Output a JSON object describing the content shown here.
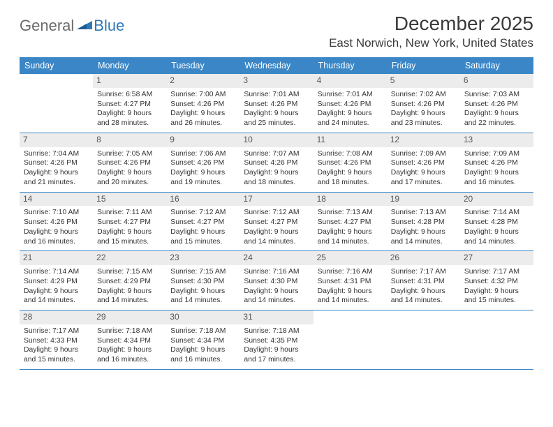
{
  "logo": {
    "text1": "General",
    "text2": "Blue"
  },
  "title": "December 2025",
  "location": "East Norwich, New York, United States",
  "colors": {
    "header_bar": "#3a86c6",
    "daynum_bg": "#ececec",
    "rule": "#3a86c6",
    "text": "#333333",
    "logo_gray": "#6b6b6b",
    "logo_blue": "#2f78b7"
  },
  "weekdays": [
    "Sunday",
    "Monday",
    "Tuesday",
    "Wednesday",
    "Thursday",
    "Friday",
    "Saturday"
  ],
  "weeks": [
    [
      {
        "n": "",
        "t": "",
        "empty": true
      },
      {
        "n": "1",
        "t": "Sunrise: 6:58 AM\nSunset: 4:27 PM\nDaylight: 9 hours and 28 minutes."
      },
      {
        "n": "2",
        "t": "Sunrise: 7:00 AM\nSunset: 4:26 PM\nDaylight: 9 hours and 26 minutes."
      },
      {
        "n": "3",
        "t": "Sunrise: 7:01 AM\nSunset: 4:26 PM\nDaylight: 9 hours and 25 minutes."
      },
      {
        "n": "4",
        "t": "Sunrise: 7:01 AM\nSunset: 4:26 PM\nDaylight: 9 hours and 24 minutes."
      },
      {
        "n": "5",
        "t": "Sunrise: 7:02 AM\nSunset: 4:26 PM\nDaylight: 9 hours and 23 minutes."
      },
      {
        "n": "6",
        "t": "Sunrise: 7:03 AM\nSunset: 4:26 PM\nDaylight: 9 hours and 22 minutes."
      }
    ],
    [
      {
        "n": "7",
        "t": "Sunrise: 7:04 AM\nSunset: 4:26 PM\nDaylight: 9 hours and 21 minutes."
      },
      {
        "n": "8",
        "t": "Sunrise: 7:05 AM\nSunset: 4:26 PM\nDaylight: 9 hours and 20 minutes."
      },
      {
        "n": "9",
        "t": "Sunrise: 7:06 AM\nSunset: 4:26 PM\nDaylight: 9 hours and 19 minutes."
      },
      {
        "n": "10",
        "t": "Sunrise: 7:07 AM\nSunset: 4:26 PM\nDaylight: 9 hours and 18 minutes."
      },
      {
        "n": "11",
        "t": "Sunrise: 7:08 AM\nSunset: 4:26 PM\nDaylight: 9 hours and 18 minutes."
      },
      {
        "n": "12",
        "t": "Sunrise: 7:09 AM\nSunset: 4:26 PM\nDaylight: 9 hours and 17 minutes."
      },
      {
        "n": "13",
        "t": "Sunrise: 7:09 AM\nSunset: 4:26 PM\nDaylight: 9 hours and 16 minutes."
      }
    ],
    [
      {
        "n": "14",
        "t": "Sunrise: 7:10 AM\nSunset: 4:26 PM\nDaylight: 9 hours and 16 minutes."
      },
      {
        "n": "15",
        "t": "Sunrise: 7:11 AM\nSunset: 4:27 PM\nDaylight: 9 hours and 15 minutes."
      },
      {
        "n": "16",
        "t": "Sunrise: 7:12 AM\nSunset: 4:27 PM\nDaylight: 9 hours and 15 minutes."
      },
      {
        "n": "17",
        "t": "Sunrise: 7:12 AM\nSunset: 4:27 PM\nDaylight: 9 hours and 14 minutes."
      },
      {
        "n": "18",
        "t": "Sunrise: 7:13 AM\nSunset: 4:27 PM\nDaylight: 9 hours and 14 minutes."
      },
      {
        "n": "19",
        "t": "Sunrise: 7:13 AM\nSunset: 4:28 PM\nDaylight: 9 hours and 14 minutes."
      },
      {
        "n": "20",
        "t": "Sunrise: 7:14 AM\nSunset: 4:28 PM\nDaylight: 9 hours and 14 minutes."
      }
    ],
    [
      {
        "n": "21",
        "t": "Sunrise: 7:14 AM\nSunset: 4:29 PM\nDaylight: 9 hours and 14 minutes."
      },
      {
        "n": "22",
        "t": "Sunrise: 7:15 AM\nSunset: 4:29 PM\nDaylight: 9 hours and 14 minutes."
      },
      {
        "n": "23",
        "t": "Sunrise: 7:15 AM\nSunset: 4:30 PM\nDaylight: 9 hours and 14 minutes."
      },
      {
        "n": "24",
        "t": "Sunrise: 7:16 AM\nSunset: 4:30 PM\nDaylight: 9 hours and 14 minutes."
      },
      {
        "n": "25",
        "t": "Sunrise: 7:16 AM\nSunset: 4:31 PM\nDaylight: 9 hours and 14 minutes."
      },
      {
        "n": "26",
        "t": "Sunrise: 7:17 AM\nSunset: 4:31 PM\nDaylight: 9 hours and 14 minutes."
      },
      {
        "n": "27",
        "t": "Sunrise: 7:17 AM\nSunset: 4:32 PM\nDaylight: 9 hours and 15 minutes."
      }
    ],
    [
      {
        "n": "28",
        "t": "Sunrise: 7:17 AM\nSunset: 4:33 PM\nDaylight: 9 hours and 15 minutes."
      },
      {
        "n": "29",
        "t": "Sunrise: 7:18 AM\nSunset: 4:34 PM\nDaylight: 9 hours and 16 minutes."
      },
      {
        "n": "30",
        "t": "Sunrise: 7:18 AM\nSunset: 4:34 PM\nDaylight: 9 hours and 16 minutes."
      },
      {
        "n": "31",
        "t": "Sunrise: 7:18 AM\nSunset: 4:35 PM\nDaylight: 9 hours and 17 minutes."
      },
      {
        "n": "",
        "t": "",
        "empty": true
      },
      {
        "n": "",
        "t": "",
        "empty": true
      },
      {
        "n": "",
        "t": "",
        "empty": true
      }
    ]
  ]
}
